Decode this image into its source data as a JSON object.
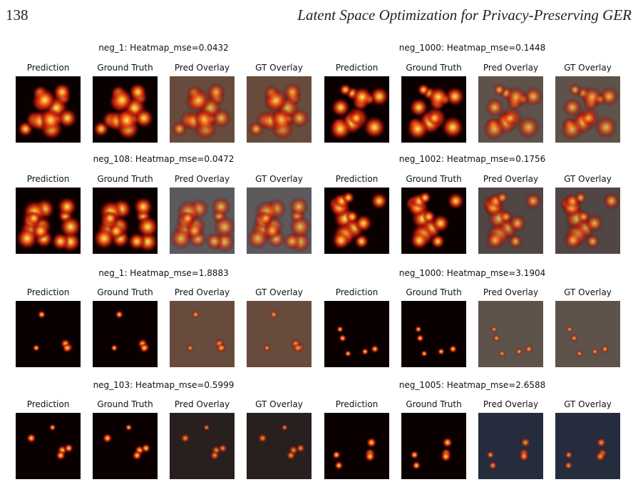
{
  "header": {
    "page": "138",
    "title": "Latent Space Optimization for Privacy-Preserving GER"
  },
  "figure": {
    "groups": [
      {
        "title": "neg_1: Heatmap_mse=0.0432",
        "labels": [
          "Prediction",
          "Ground Truth",
          "Pred Overlay",
          "GT Overlay"
        ]
      },
      {
        "title": "neg_1000: Heatmap_mse=0.1448",
        "labels": [
          "Prediction",
          "Ground Truth",
          "Pred Overlay",
          "GT Overlay"
        ]
      },
      {
        "title": "neg_108: Heatmap_mse=0.0472",
        "labels": [
          "Prediction",
          "Ground Truth",
          "Pred Overlay",
          "GT Overlay"
        ]
      },
      {
        "title": "neg_1002: Heatmap_mse=0.1756",
        "labels": [
          "Prediction",
          "Ground Truth",
          "Pred Overlay",
          "GT Overlay"
        ]
      },
      {
        "title": "neg_1: Heatmap_mse=1.8883",
        "labels": [
          "Prediction",
          "Ground Truth",
          "Pred Overlay",
          "GT Overlay"
        ]
      },
      {
        "title": "neg_1000: Heatmap_mse=3.1904",
        "labels": [
          "Prediction",
          "Ground Truth",
          "Pred Overlay",
          "GT Overlay"
        ]
      },
      {
        "title": "neg_103: Heatmap_mse=0.5999",
        "labels": [
          "Prediction",
          "Ground Truth",
          "Pred Overlay",
          "GT Overlay"
        ]
      },
      {
        "title": "neg_1005: Heatmap_mse=2.6588",
        "labels": [
          "Prediction",
          "Ground Truth",
          "Pred Overlay",
          "GT Overlay"
        ]
      }
    ]
  }
}
